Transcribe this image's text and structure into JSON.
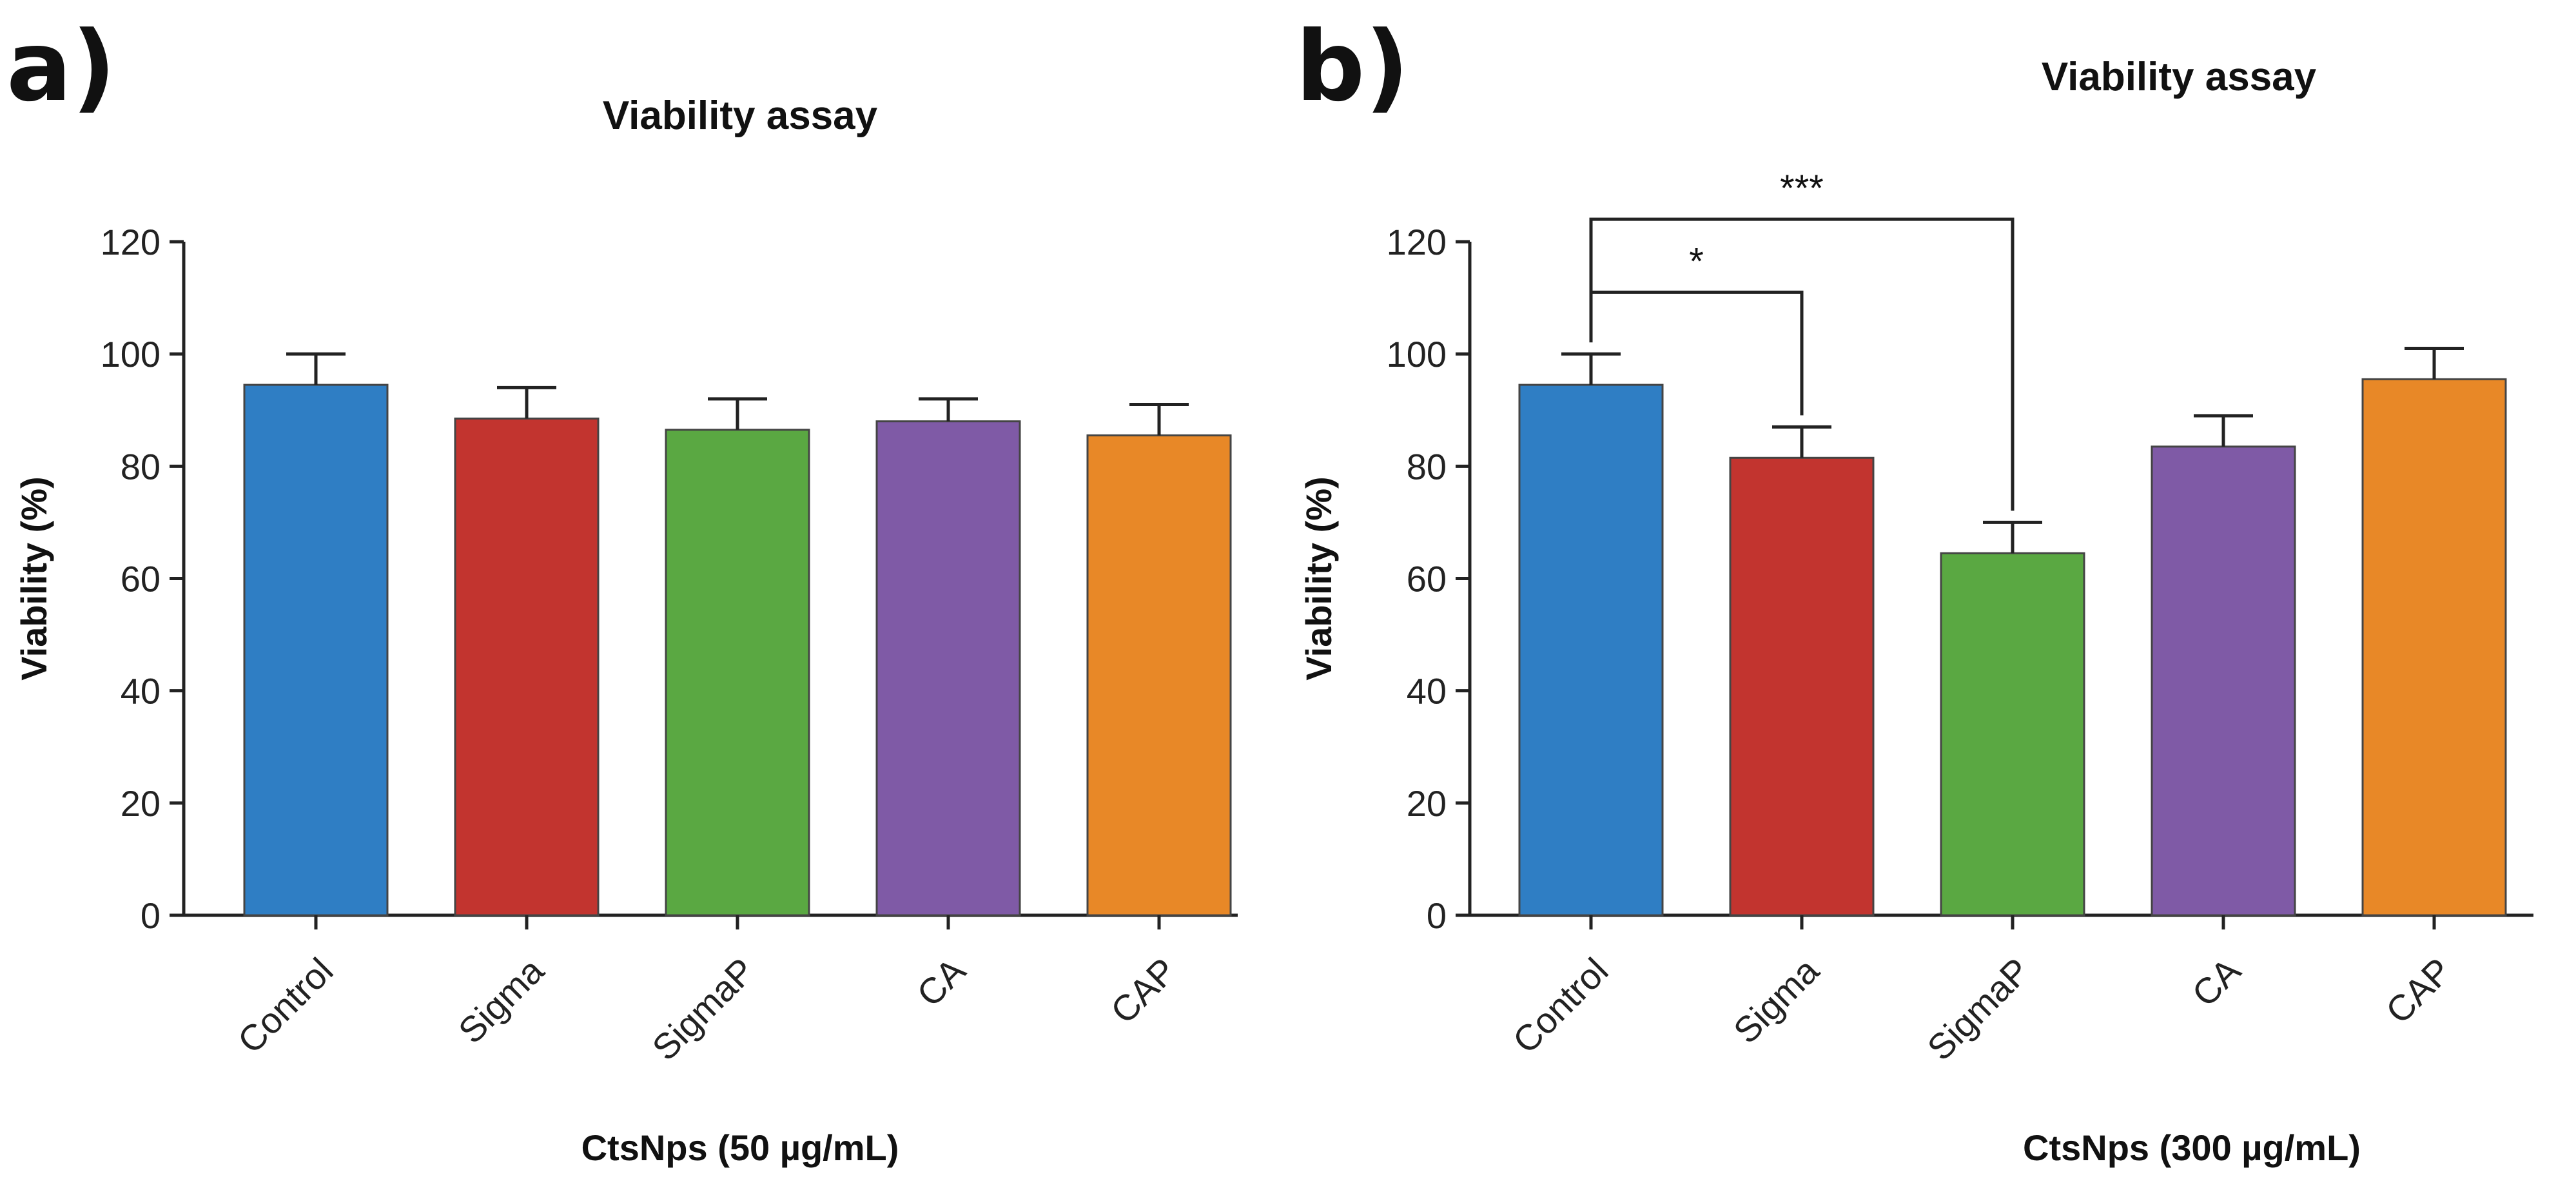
{
  "chart_data": [
    {
      "type": "bar",
      "panel_label": "a)",
      "title": "Viability assay",
      "xlabel": "CtsNps (50 µg/mL)",
      "ylabel": "Viability (%)",
      "ylim": [
        0,
        120
      ],
      "yticks": [
        0,
        20,
        40,
        60,
        80,
        100,
        120
      ],
      "categories": [
        "Control",
        "Sigma",
        "SigmaP",
        "CA",
        "CAP"
      ],
      "values": [
        94.5,
        88.5,
        86.5,
        88,
        85.5
      ],
      "error_upper": [
        100,
        94,
        92,
        92,
        91
      ],
      "colors": [
        "#2f7ec4",
        "#c2342f",
        "#5aa842",
        "#7f5aa6",
        "#e88827"
      ],
      "significance": []
    },
    {
      "type": "bar",
      "panel_label": "b)",
      "title": "Viability assay",
      "xlabel": "CtsNps (300 µg/mL)",
      "ylabel": "Viability (%)",
      "ylim": [
        0,
        120
      ],
      "yticks": [
        0,
        20,
        40,
        60,
        80,
        100,
        120
      ],
      "categories": [
        "Control",
        "Sigma",
        "SigmaP",
        "CA",
        "CAP"
      ],
      "values": [
        94.5,
        81.5,
        64.5,
        83.5,
        95.5
      ],
      "error_upper": [
        100,
        87,
        70,
        89,
        101
      ],
      "colors": [
        "#2f7ec4",
        "#c2342f",
        "#5aa842",
        "#7f5aa6",
        "#e88827"
      ],
      "significance": [
        {
          "from": 0,
          "to": 1,
          "label": "*",
          "y": 111
        },
        {
          "from": 0,
          "to": 2,
          "label": "***",
          "y": 124
        }
      ]
    }
  ]
}
